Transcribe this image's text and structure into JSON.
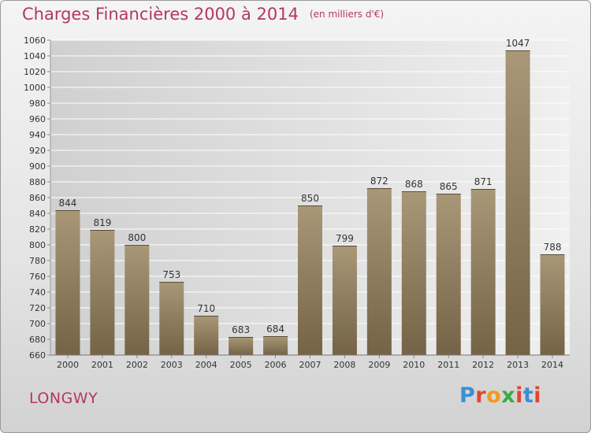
{
  "header": {
    "title": "Charges Financières 2000 à 2014",
    "subtitle": "(en milliers d'€)"
  },
  "footer": {
    "city": "LONGWY",
    "logo_text": "Proxiti"
  },
  "colors": {
    "accent": "#b5385d",
    "bar_top": "#a89878",
    "bar_bottom": "#746346"
  },
  "chart_data": {
    "type": "bar",
    "title": "Charges Financières 2000 à 2014",
    "subtitle": "(en milliers d'€)",
    "categories": [
      "2000",
      "2001",
      "2002",
      "2003",
      "2004",
      "2005",
      "2006",
      "2007",
      "2008",
      "2009",
      "2010",
      "2011",
      "2012",
      "2013",
      "2014"
    ],
    "values": [
      844,
      819,
      800,
      753,
      710,
      683,
      684,
      850,
      799,
      872,
      868,
      865,
      871,
      1047,
      788
    ],
    "xlabel": "",
    "ylabel": "",
    "ylim": [
      660,
      1060
    ],
    "yticks": [
      660,
      680,
      700,
      720,
      740,
      760,
      780,
      800,
      820,
      840,
      860,
      880,
      900,
      920,
      940,
      960,
      980,
      1000,
      1020,
      1040,
      1060
    ],
    "grid": true,
    "legend": "none"
  }
}
